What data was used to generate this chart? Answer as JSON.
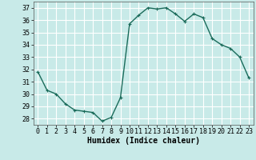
{
  "x": [
    0,
    1,
    2,
    3,
    4,
    5,
    6,
    7,
    8,
    9,
    10,
    11,
    12,
    13,
    14,
    15,
    16,
    17,
    18,
    19,
    20,
    21,
    22,
    23
  ],
  "y": [
    31.8,
    30.3,
    30.0,
    29.2,
    28.7,
    28.6,
    28.5,
    27.8,
    28.1,
    29.7,
    35.7,
    36.4,
    37.0,
    36.9,
    37.0,
    36.5,
    35.9,
    36.5,
    36.2,
    34.5,
    34.0,
    33.7,
    33.0,
    31.3
  ],
  "line_color": "#1a6b5a",
  "marker": "+",
  "marker_size": 3.5,
  "linewidth": 1.0,
  "bg_color": "#c8eae8",
  "grid_color": "#ffffff",
  "xlabel": "Humidex (Indice chaleur)",
  "xlabel_fontsize": 7,
  "tick_fontsize": 6,
  "xlim": [
    -0.5,
    23.5
  ],
  "ylim": [
    27.5,
    37.5
  ],
  "yticks": [
    28,
    29,
    30,
    31,
    32,
    33,
    34,
    35,
    36,
    37
  ],
  "xticks": [
    0,
    1,
    2,
    3,
    4,
    5,
    6,
    7,
    8,
    9,
    10,
    11,
    12,
    13,
    14,
    15,
    16,
    17,
    18,
    19,
    20,
    21,
    22,
    23
  ]
}
